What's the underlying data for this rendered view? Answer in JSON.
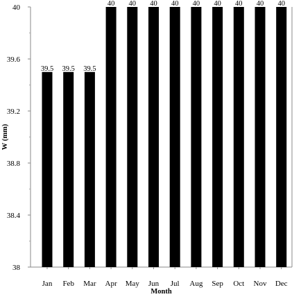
{
  "chart_data": {
    "type": "bar",
    "title": "",
    "xlabel": "Month",
    "ylabel": "W (mm)",
    "categories": [
      "Jan",
      "Feb",
      "Mar",
      "Apr",
      "May",
      "Jun",
      "Jul",
      "Aug",
      "Sep",
      "Oct",
      "Nov",
      "Dec"
    ],
    "values": [
      39.5,
      39.5,
      39.5,
      40,
      40,
      40,
      40,
      40,
      40,
      40,
      40,
      40
    ],
    "value_labels": [
      "39.5",
      "39.5",
      "39.5",
      "40",
      "40",
      "40",
      "40",
      "40",
      "40",
      "40",
      "40",
      "40"
    ],
    "ylim": [
      38,
      40
    ],
    "yticks": [
      "38",
      "38.4",
      "38.8",
      "39.2",
      "39.6",
      "40"
    ],
    "grid": false,
    "legend": "none",
    "bar_color": "#000000"
  }
}
